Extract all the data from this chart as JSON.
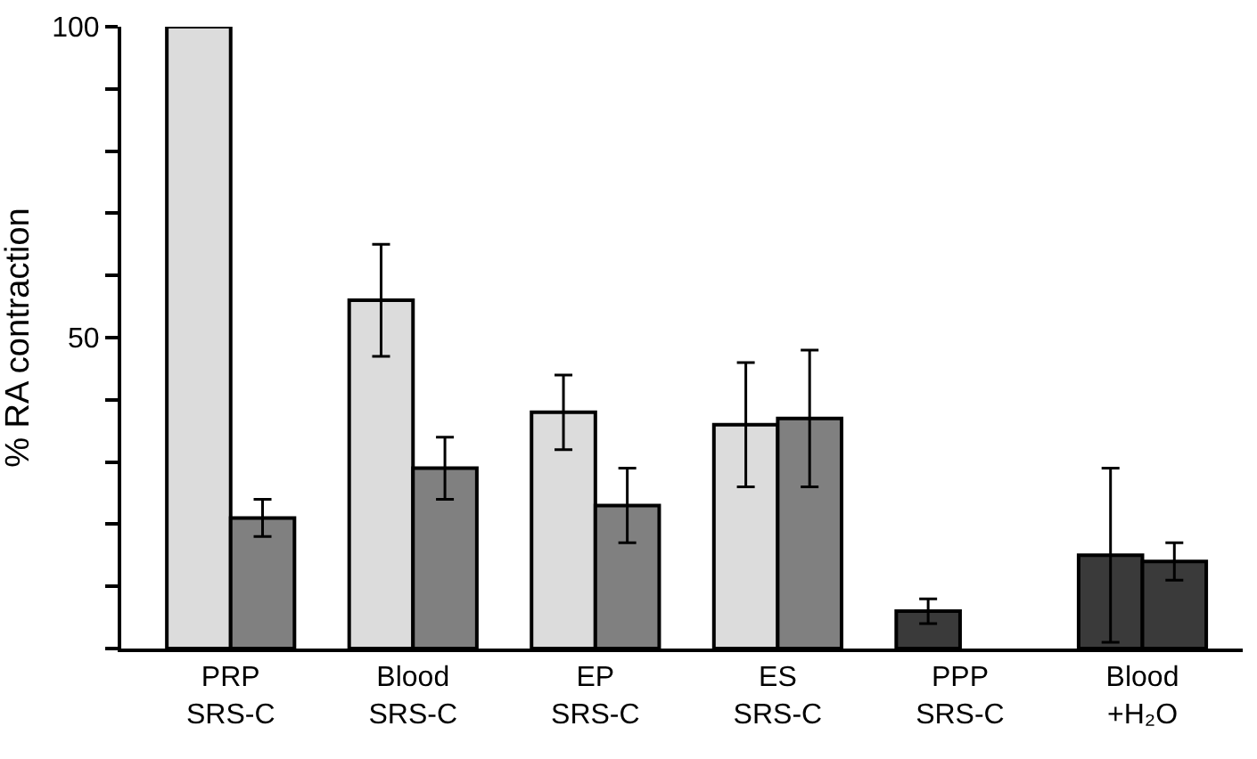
{
  "chart_data": {
    "type": "bar",
    "ylabel": "% RA contraction",
    "categories": [
      "PRP\nSRS-C",
      "Blood\nSRS-C",
      "EP\nSRS-C",
      "ES\nSRS-C",
      "PPP\nSRS-C",
      "Blood\n+H₂O"
    ],
    "series": [
      {
        "colors": [
          "#dcdcdc",
          "#dcdcdc",
          "#dcdcdc",
          "#dcdcdc",
          "#3a3a3a",
          "#3a3a3a"
        ],
        "values": [
          100,
          56,
          38,
          36,
          6,
          15
        ],
        "errors": [
          null,
          9,
          6,
          10,
          2,
          14
        ]
      },
      {
        "colors": [
          "#808080",
          "#808080",
          "#808080",
          "#808080",
          "#3a3a3a",
          "#3a3a3a"
        ],
        "values": [
          21,
          29,
          23,
          37,
          null,
          14
        ],
        "errors": [
          3,
          5,
          6,
          11,
          null,
          3
        ]
      }
    ],
    "ylim": [
      0,
      100
    ],
    "yticks": [
      {
        "value": 0,
        "label": null
      },
      {
        "value": 10,
        "label": null
      },
      {
        "value": 20,
        "label": null
      },
      {
        "value": 30,
        "label": null
      },
      {
        "value": 40,
        "label": null
      },
      50,
      {
        "value": 60,
        "label": null
      },
      {
        "value": 70,
        "label": null
      },
      {
        "value": 80,
        "label": null
      },
      {
        "value": 90,
        "label": null
      },
      100
    ],
    "grid": false
  }
}
